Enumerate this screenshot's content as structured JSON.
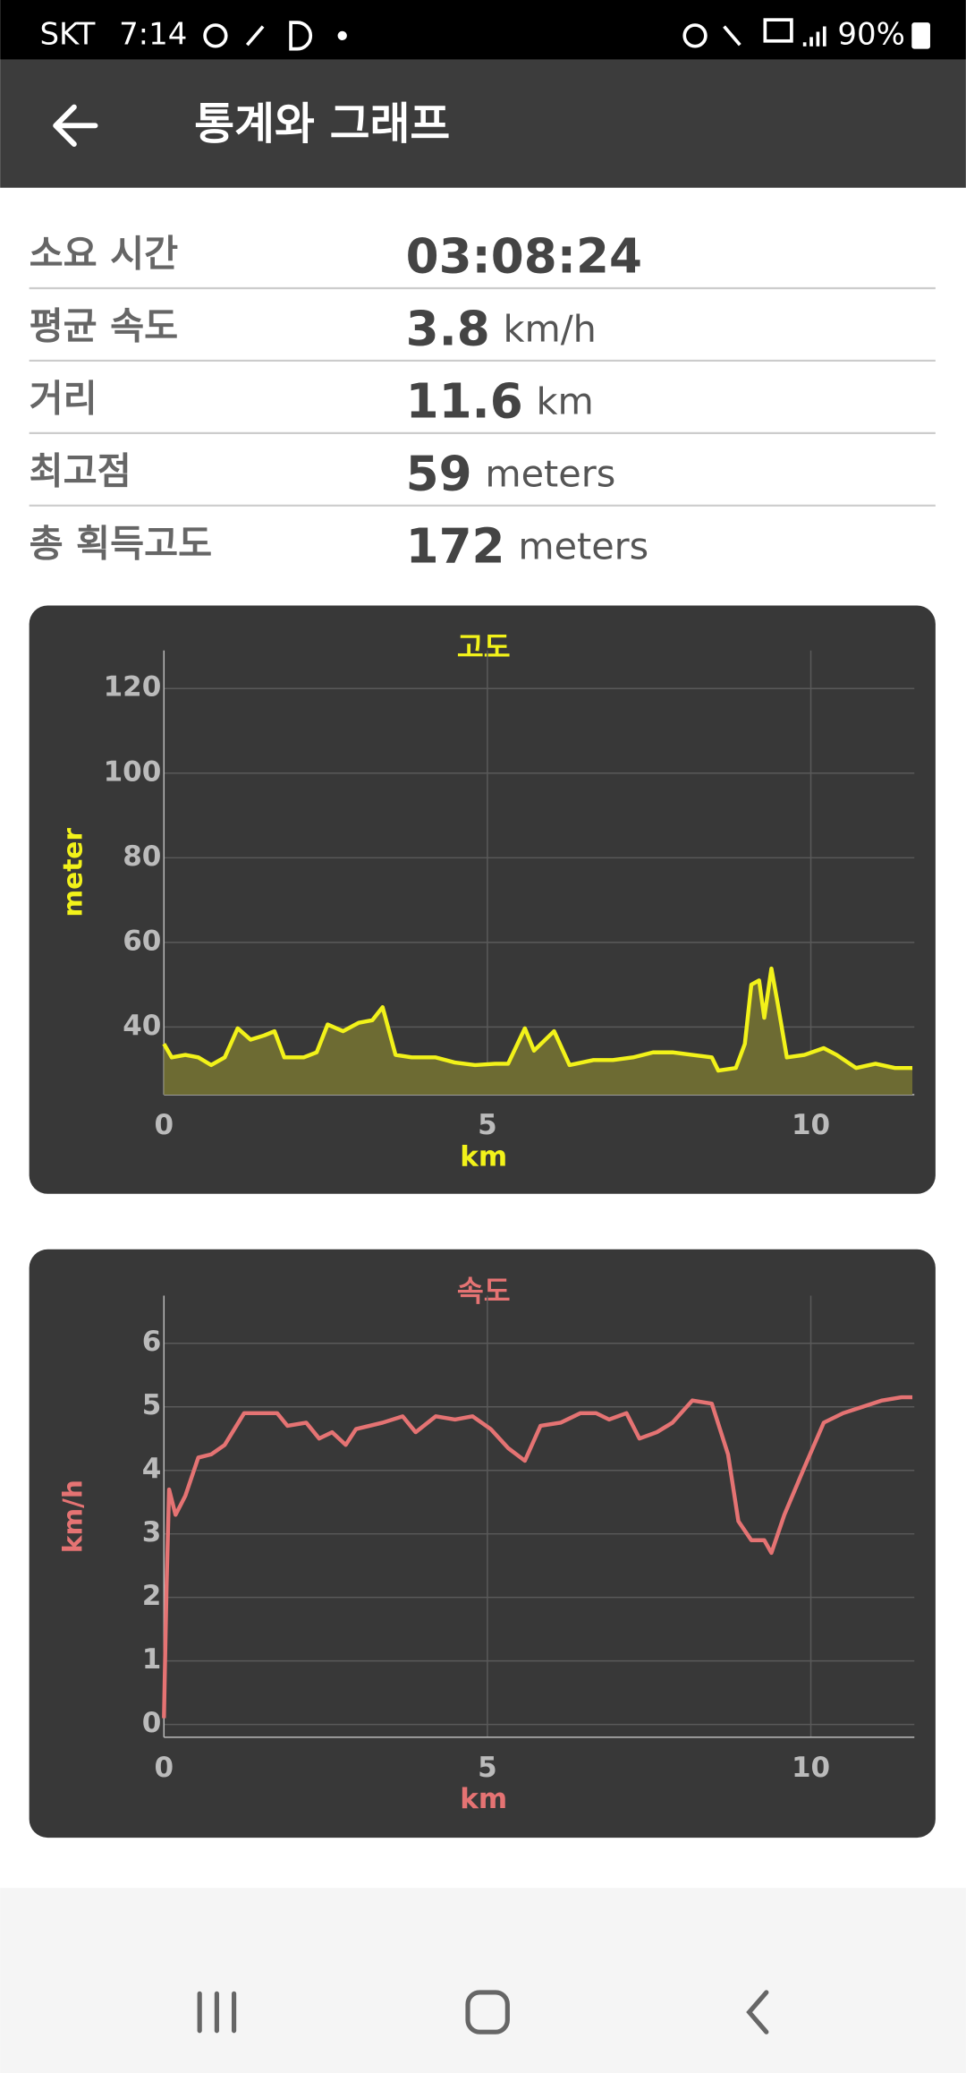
{
  "status_bar": {
    "carrier": "SKT",
    "time": "7:14",
    "battery": "90%"
  },
  "app_bar": {
    "title": "통계와 그래프"
  },
  "stats": [
    {
      "label": "소요 시간",
      "value": "03:08:24"
    },
    {
      "label": "평균 속도",
      "value": 3.8,
      "unit": "km/h"
    },
    {
      "label": "거리",
      "value": 11.6,
      "unit": "km"
    },
    {
      "label": "최고점",
      "value": 59,
      "unit": "meters"
    },
    {
      "label": "총 획득고도",
      "value": 172,
      "unit": "meters"
    }
  ],
  "chart_data": [
    {
      "type": "area",
      "title": "고도",
      "x_label": "km",
      "y_label": "meter",
      "color": "#f2f21a",
      "fill_color": "#6d6b33",
      "xlim": [
        0,
        11.6
      ],
      "ylim": [
        24,
        129
      ],
      "xticks": [
        0,
        5,
        10
      ],
      "yticks": [
        40,
        60,
        80,
        100,
        120
      ],
      "grid": true,
      "x": [
        0,
        0.12,
        0.33,
        0.53,
        0.73,
        0.94,
        1.14,
        1.34,
        1.55,
        1.71,
        1.86,
        2.16,
        2.36,
        2.53,
        2.77,
        3.01,
        3.22,
        3.38,
        3.58,
        3.83,
        4.2,
        4.5,
        4.81,
        5.12,
        5.32,
        5.58,
        5.72,
        6.03,
        6.27,
        6.64,
        6.94,
        7.25,
        7.56,
        7.86,
        8.17,
        8.47,
        8.57,
        8.84,
        8.98,
        9.08,
        9.2,
        9.28,
        9.39,
        9.49,
        9.63,
        9.9,
        10.2,
        10.4,
        10.7,
        11.0,
        11.3,
        11.57
      ],
      "values": [
        36,
        32.8,
        33.4,
        32.8,
        31,
        32.8,
        39.7,
        37,
        38,
        39,
        32.8,
        32.8,
        34,
        40.6,
        39,
        41,
        41.6,
        44.7,
        33.4,
        32.8,
        32.8,
        31.6,
        31,
        31.3,
        31.3,
        39.7,
        34.4,
        39,
        31,
        32.2,
        32.2,
        32.8,
        34,
        34,
        33.4,
        32.8,
        29.7,
        30.3,
        36,
        50,
        51,
        42.2,
        53.8,
        45.3,
        32.8,
        33.4,
        35,
        33.4,
        30.3,
        31.3,
        30.3,
        30.3
      ]
    },
    {
      "type": "line",
      "title": "속도",
      "x_label": "km",
      "y_label": "km/h",
      "color": "#e57373",
      "xlim": [
        0,
        11.6
      ],
      "ylim": [
        -0.2,
        6.75
      ],
      "xticks": [
        0,
        5,
        10
      ],
      "yticks": [
        0,
        1,
        2,
        3,
        4,
        5,
        6
      ],
      "grid": true,
      "x": [
        0,
        0.04,
        0.08,
        0.18,
        0.33,
        0.53,
        0.73,
        0.94,
        1.24,
        1.45,
        1.75,
        1.91,
        2.2,
        2.4,
        2.6,
        2.81,
        2.97,
        3.38,
        3.69,
        3.89,
        4.2,
        4.5,
        4.77,
        5.05,
        5.32,
        5.58,
        5.82,
        6.13,
        6.44,
        6.68,
        6.88,
        7.15,
        7.35,
        7.62,
        7.86,
        8.17,
        8.47,
        8.72,
        8.88,
        9.08,
        9.28,
        9.39,
        9.59,
        9.9,
        10.2,
        10.5,
        10.8,
        11.1,
        11.4,
        11.57
      ],
      "values": [
        0.1,
        2.2,
        3.7,
        3.3,
        3.6,
        4.2,
        4.25,
        4.4,
        4.9,
        4.9,
        4.9,
        4.7,
        4.75,
        4.5,
        4.6,
        4.4,
        4.65,
        4.75,
        4.85,
        4.6,
        4.85,
        4.8,
        4.85,
        4.65,
        4.35,
        4.15,
        4.7,
        4.75,
        4.9,
        4.9,
        4.8,
        4.9,
        4.5,
        4.6,
        4.75,
        5.1,
        5.05,
        4.25,
        3.2,
        2.9,
        2.9,
        2.7,
        3.3,
        4.05,
        4.75,
        4.9,
        5.0,
        5.1,
        5.15,
        5.15
      ]
    }
  ]
}
